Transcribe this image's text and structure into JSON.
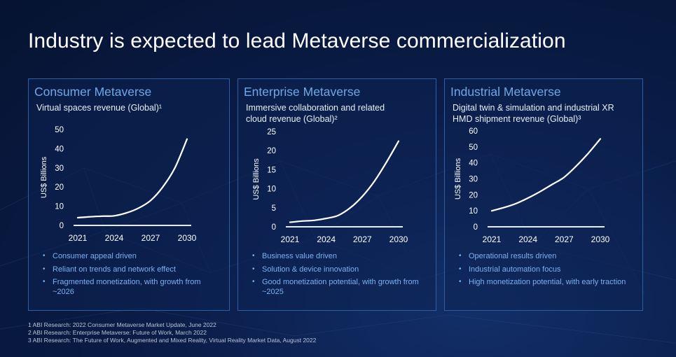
{
  "slide_title": "Industry is expected to lead Metaverse commercialization",
  "colors": {
    "accent": "#6fa8e8",
    "bullet_text": "#79b2f0",
    "line": "#ffffff",
    "panel_border": "#2d5fa2"
  },
  "chart_data": [
    {
      "type": "line",
      "title": "Consumer Metaverse",
      "subtitle_lines": [
        "Virtual spaces revenue (Global)¹"
      ],
      "ylabel": "US$ Billions",
      "xlabel": "",
      "ylim": [
        0,
        50
      ],
      "yticks": [
        0,
        10,
        20,
        30,
        40,
        50
      ],
      "xlim": [
        2021,
        2030
      ],
      "xticks": [
        "2021",
        "2024",
        "2027",
        "2030"
      ],
      "series": [
        {
          "name": "Virtual spaces revenue",
          "x": [
            2021,
            2022,
            2023,
            2024,
            2025,
            2026,
            2027,
            2028,
            2029,
            2030
          ],
          "values": [
            4,
            4.5,
            4.8,
            5,
            6.5,
            9,
            13,
            20,
            30,
            45
          ]
        }
      ],
      "bullets": [
        "Consumer appeal driven",
        "Reliant on trends and network effect",
        "Fragmented monetization, with growth from ~2026"
      ]
    },
    {
      "type": "line",
      "title": "Enterprise Metaverse",
      "subtitle_lines": [
        "Immersive collaboration and related",
        "cloud revenue (Global)²"
      ],
      "ylabel": "US$ Billions",
      "xlabel": "",
      "ylim": [
        0,
        25
      ],
      "yticks": [
        0,
        5,
        10,
        15,
        20,
        25
      ],
      "xlim": [
        2021,
        2030
      ],
      "xticks": [
        "2021",
        "2024",
        "2027",
        "2030"
      ],
      "series": [
        {
          "name": "Immersive collaboration and related cloud revenue",
          "x": [
            2021,
            2022,
            2023,
            2024,
            2025,
            2026,
            2027,
            2028,
            2029,
            2030
          ],
          "values": [
            1.2,
            1.5,
            1.7,
            2.2,
            3,
            5,
            8,
            12,
            17,
            22.5
          ]
        }
      ],
      "bullets": [
        "Business value driven",
        "Solution & device innovation",
        "Good monetization potential, with growth from ~2025"
      ]
    },
    {
      "type": "line",
      "title": "Industrial Metaverse",
      "subtitle_lines": [
        "Digital twin & simulation and industrial XR",
        "HMD shipment revenue (Global)³"
      ],
      "ylabel": "US$ Billions",
      "xlabel": "",
      "ylim": [
        0,
        60
      ],
      "yticks": [
        0,
        10,
        20,
        30,
        40,
        50,
        60
      ],
      "xlim": [
        2021,
        2030
      ],
      "xticks": [
        "2021",
        "2024",
        "2027",
        "2030"
      ],
      "series": [
        {
          "name": "Digital twin & simulation and industrial XR HMD shipment revenue",
          "x": [
            2021,
            2022,
            2023,
            2024,
            2025,
            2026,
            2027,
            2028,
            2029,
            2030
          ],
          "values": [
            10,
            12,
            14.5,
            18,
            22,
            26.5,
            31,
            38,
            46,
            55
          ]
        }
      ],
      "bullets": [
        "Operational results driven",
        "Industrial automation focus",
        "High monetization potential, with early traction"
      ]
    }
  ],
  "footnotes": [
    "1 ABI Research: 2022 Consumer Metaverse Market Update, June 2022",
    "2 ABI Research: Enterprise Metaverse: Future of Work, March 2022",
    "3 ABI Research: The Future of Work, Augmented and Mixed Reality, Virtual Reality Market Data, August 2022"
  ]
}
